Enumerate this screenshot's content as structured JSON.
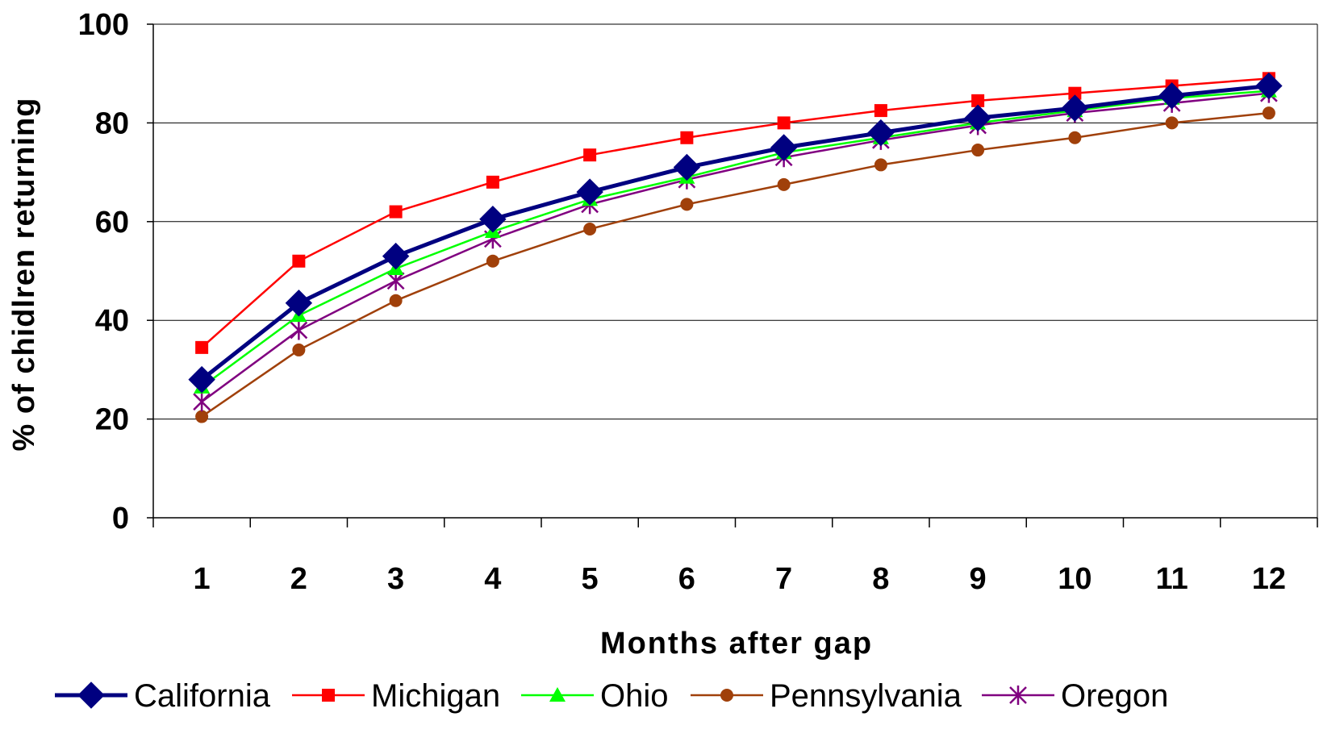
{
  "chart_data": {
    "type": "line",
    "xlabel": "Months after gap",
    "ylabel": "% of chidlren returning",
    "ylim": [
      0,
      100
    ],
    "yticks": [
      0,
      20,
      40,
      60,
      80,
      100
    ],
    "grid": true,
    "legend_position": "bottom",
    "x": [
      1,
      2,
      3,
      4,
      5,
      6,
      7,
      8,
      9,
      10,
      11,
      12
    ],
    "x_labels": [
      "1",
      "2",
      "3",
      "4",
      "5",
      "6",
      "7",
      "8",
      "9",
      "10",
      "11",
      "12"
    ],
    "series": [
      {
        "name": "California",
        "color": "#000080",
        "marker": "diamond",
        "width": 5,
        "values": [
          28,
          43.5,
          53,
          60.5,
          66,
          71,
          75,
          78,
          81,
          83,
          85.5,
          87.5
        ]
      },
      {
        "name": "Michigan",
        "color": "#ff0000",
        "marker": "square",
        "width": 2.5,
        "values": [
          34.5,
          52,
          62,
          68,
          73.5,
          77,
          80,
          82.5,
          84.5,
          86,
          87.5,
          89
        ]
      },
      {
        "name": "Ohio",
        "color": "#00ff00",
        "marker": "triangle",
        "width": 2.5,
        "values": [
          26.5,
          41,
          50.5,
          58,
          64.5,
          69,
          74,
          77,
          80,
          82.5,
          85,
          86.5
        ]
      },
      {
        "name": "Pennsylvania",
        "color": "#a0400a",
        "marker": "circle",
        "width": 2.5,
        "values": [
          20.5,
          34,
          44,
          52,
          58.5,
          63.5,
          67.5,
          71.5,
          74.5,
          77,
          80,
          82
        ]
      },
      {
        "name": "Oregon",
        "color": "#800080",
        "marker": "star",
        "width": 2.5,
        "values": [
          23.5,
          38,
          48,
          56.5,
          63.5,
          68.5,
          73,
          76.5,
          79.5,
          82,
          84,
          86
        ]
      }
    ]
  }
}
